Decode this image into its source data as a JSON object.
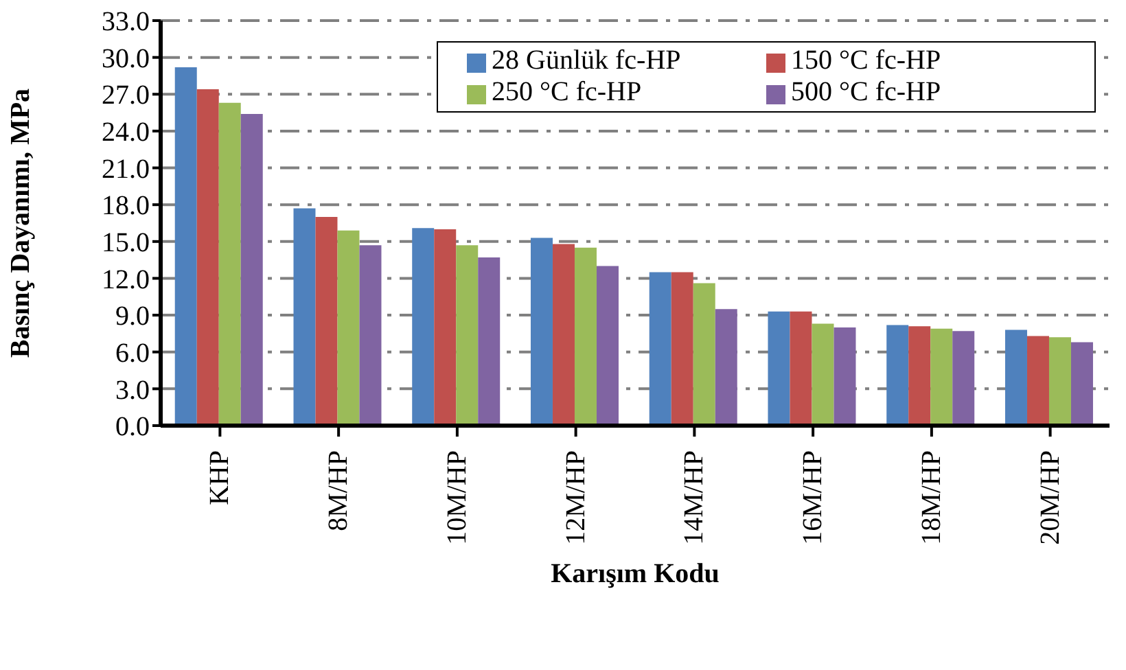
{
  "chart_data": {
    "type": "bar",
    "xlabel": "Karışım Kodu",
    "ylabel": "Basınç Dayanımı, MPa",
    "categories": [
      "KHP",
      "8M/HP",
      "10M/HP",
      "12M/HP",
      "14M/HP",
      "16M/HP",
      "18M/HP",
      "20M/HP"
    ],
    "series": [
      {
        "name": "28 Günlük fc-HP",
        "color": "#4f81bd",
        "values": [
          29.2,
          17.7,
          16.1,
          15.3,
          12.5,
          9.3,
          8.2,
          7.8
        ]
      },
      {
        "name": "150 °C fc-HP",
        "color": "#c0504d",
        "values": [
          27.4,
          17.0,
          16.0,
          14.8,
          12.5,
          9.3,
          8.1,
          7.3
        ]
      },
      {
        "name": "250 °C fc-HP",
        "color": "#9bbb59",
        "values": [
          26.3,
          15.9,
          14.7,
          14.5,
          11.6,
          8.3,
          7.9,
          7.2
        ]
      },
      {
        "name": "500 °C fc-HP",
        "color": "#8064a2",
        "values": [
          25.4,
          14.7,
          13.7,
          13.0,
          9.5,
          8.0,
          7.7,
          6.8
        ]
      }
    ],
    "ylim": [
      0,
      33
    ],
    "yticks": [
      {
        "value": 0,
        "label": "0.0"
      },
      {
        "value": 3,
        "label": "3.0"
      },
      {
        "value": 6,
        "label": "6.0"
      },
      {
        "value": 9,
        "label": "9.0"
      },
      {
        "value": 12,
        "label": "12.0"
      },
      {
        "value": 15,
        "label": "15.0"
      },
      {
        "value": 18,
        "label": "18.0"
      },
      {
        "value": 21,
        "label": "21.0"
      },
      {
        "value": 24,
        "label": "24.0"
      },
      {
        "value": 27,
        "label": "27.0"
      },
      {
        "value": 30,
        "label": "30.0"
      },
      {
        "value": 33,
        "label": "33.0"
      }
    ],
    "grid": "y",
    "legend": "top right"
  }
}
